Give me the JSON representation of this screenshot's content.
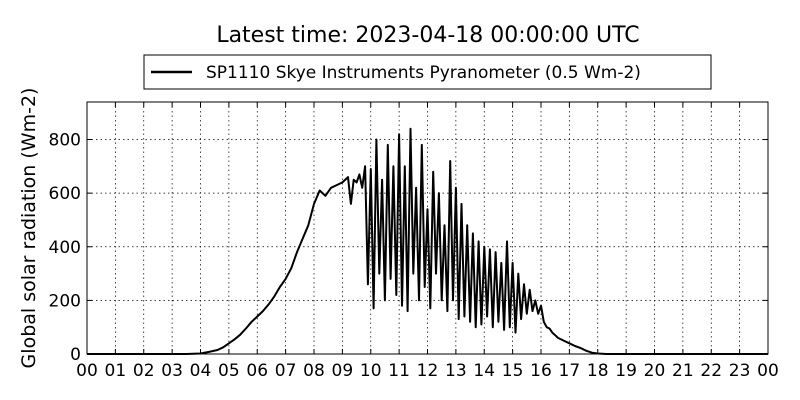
{
  "chart_data": {
    "type": "line",
    "title": "Latest time: 2023-04-18 00:00:00 UTC",
    "xlabel": "",
    "ylabel": "Global solar radiation (Wm-2)",
    "xlim": [
      0,
      24
    ],
    "ylim": [
      0,
      940
    ],
    "grid": true,
    "legend_position": "top",
    "x_tick_labels": [
      "00",
      "01",
      "02",
      "03",
      "04",
      "05",
      "06",
      "07",
      "08",
      "09",
      "10",
      "11",
      "12",
      "13",
      "14",
      "15",
      "16",
      "17",
      "18",
      "19",
      "20",
      "21",
      "22",
      "23",
      "00"
    ],
    "y_ticks": [
      0,
      200,
      400,
      600,
      800
    ],
    "series": [
      {
        "name": "SP1110 Skye Instruments Pyranometer (0.5 Wm-2)",
        "color": "#000000",
        "x": [
          0,
          3.5,
          4.0,
          4.3,
          4.6,
          4.8,
          5.0,
          5.2,
          5.4,
          5.6,
          5.8,
          6.0,
          6.2,
          6.4,
          6.6,
          6.8,
          7.0,
          7.2,
          7.4,
          7.6,
          7.8,
          8.0,
          8.2,
          8.4,
          8.6,
          8.8,
          9.0,
          9.2,
          9.3,
          9.4,
          9.5,
          9.6,
          9.7,
          9.8,
          9.9,
          10.0,
          10.1,
          10.2,
          10.3,
          10.4,
          10.5,
          10.6,
          10.7,
          10.8,
          10.9,
          11.0,
          11.1,
          11.2,
          11.3,
          11.4,
          11.5,
          11.6,
          11.7,
          11.8,
          11.9,
          12.0,
          12.1,
          12.2,
          12.3,
          12.4,
          12.5,
          12.6,
          12.7,
          12.8,
          12.9,
          13.0,
          13.1,
          13.2,
          13.3,
          13.4,
          13.5,
          13.6,
          13.7,
          13.8,
          13.9,
          14.0,
          14.1,
          14.2,
          14.3,
          14.4,
          14.5,
          14.6,
          14.7,
          14.8,
          14.9,
          15.0,
          15.1,
          15.2,
          15.3,
          15.4,
          15.5,
          15.6,
          15.7,
          15.8,
          15.9,
          16.0,
          16.1,
          16.2,
          16.3,
          16.4,
          16.5,
          16.6,
          16.8,
          17.0,
          17.2,
          17.4,
          17.6,
          17.8,
          18.0,
          18.3,
          24.0
        ],
        "values": [
          0,
          0,
          2,
          8,
          15,
          25,
          40,
          55,
          72,
          95,
          120,
          140,
          160,
          185,
          215,
          250,
          280,
          320,
          380,
          430,
          480,
          560,
          610,
          590,
          620,
          630,
          640,
          660,
          560,
          650,
          640,
          670,
          620,
          700,
          260,
          690,
          170,
          800,
          300,
          650,
          200,
          780,
          280,
          700,
          220,
          820,
          180,
          700,
          160,
          840,
          300,
          620,
          200,
          780,
          250,
          540,
          170,
          680,
          300,
          600,
          200,
          480,
          160,
          720,
          200,
          620,
          130,
          560,
          140,
          480,
          120,
          450,
          100,
          420,
          110,
          400,
          140,
          390,
          100,
          380,
          120,
          340,
          90,
          420,
          100,
          340,
          80,
          300,
          130,
          260,
          150,
          240,
          160,
          200,
          150,
          180,
          120,
          100,
          95,
          80,
          70,
          60,
          50,
          40,
          30,
          22,
          12,
          5,
          2,
          0,
          0
        ]
      }
    ]
  }
}
